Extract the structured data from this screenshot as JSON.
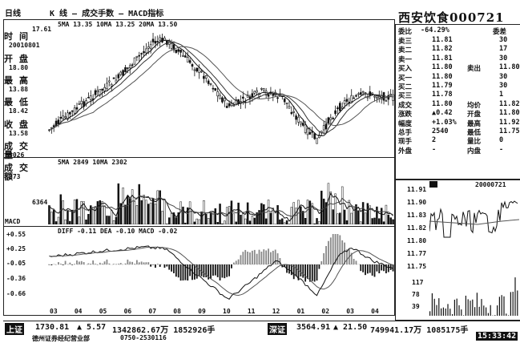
{
  "toolbar": {
    "period_label": "日线",
    "indicators_label": "K 线 — 成交手数 — MACD指标",
    "ma_legend": "5MA 13.35 10MA 13.25 20MA 13.50",
    "top_price_label": "17.61"
  },
  "stock_header": {
    "title": "西安饮食000721"
  },
  "left_info": {
    "labels": [
      "时间",
      "开盘",
      "最高",
      "最低",
      "收盘",
      "成交量",
      "成交额"
    ],
    "values": [
      "20010801",
      "18.80",
      "13.88",
      "18.42",
      "13.58",
      "3026",
      "273"
    ]
  },
  "volume_panel": {
    "legend": "5MA 2849 10MA 2302",
    "y_label": "6364"
  },
  "macd_panel": {
    "title": "MACD",
    "legend": "DIFF -0.11 DEA -0.10 MACD -0.02",
    "y_labels": [
      "+0.55",
      "+0.25",
      "-0.05",
      "-0.36",
      "-0.66"
    ]
  },
  "x_axis": {
    "labels": [
      "03",
      "04",
      "05",
      "06",
      "07",
      "08",
      "09",
      "10",
      "11",
      "12",
      "01",
      "02",
      "03",
      "04"
    ]
  },
  "quote_panel": {
    "webi_label": "委比",
    "webi_value": "-64.29%",
    "webi_cha": "委差",
    "rows": [
      {
        "label": "卖三",
        "price": "11.81",
        "vol": "30"
      },
      {
        "label": "卖二",
        "price": "11.82",
        "vol": "17"
      },
      {
        "label": "卖一",
        "price": "11.81",
        "vol": "30"
      },
      {
        "label": "买入",
        "price": "11.80",
        "vol": "11.80"
      },
      {
        "label": "买一",
        "price": "11.80",
        "vol": "30"
      },
      {
        "label": "买二",
        "price": "11.79",
        "vol": "30"
      },
      {
        "label": "买三",
        "price": "11.78",
        "vol": "1"
      },
      {
        "label": "成交",
        "price": "11.80",
        "vol": "11.82"
      },
      {
        "label": "涨跌",
        "price": "▲0.42",
        "vol": "11.80"
      },
      {
        "label": "幅度",
        "price": "+1.03%",
        "vol": "11.92"
      },
      {
        "label": "总手",
        "price": "2540",
        "vol": "11.75"
      },
      {
        "label": "现手",
        "price": "2",
        "vol": "0"
      },
      {
        "label": "外盘",
        "price": "-",
        "vol": "-"
      }
    ],
    "mid_labels": [
      "",
      "",
      "",
      "卖出",
      "",
      "",
      "",
      "均价",
      "开盘",
      "最高",
      "最低",
      "量比",
      "内盘"
    ]
  },
  "intraday_panel": {
    "date": "20000721",
    "price_labels": [
      "11.91",
      "11.90",
      "11.83",
      "11.82",
      "11.80",
      "11.77",
      "11.75"
    ],
    "vol_labels": [
      "117",
      "78",
      "39"
    ]
  },
  "status_bar": {
    "index1_name": "上证",
    "index1_value": "1730.81",
    "index1_change": "▲ 5.57",
    "index1_volume": "1342862.67万 1852926手",
    "index2_name": "深证",
    "index2_value": "3564.91",
    "index2_change": "▲ 21.50",
    "index2_volume": "749941.17万 1085175手",
    "broker": "德州证券经纪营业部",
    "phone": "0750-2530116",
    "time": "15:33:42"
  }
}
